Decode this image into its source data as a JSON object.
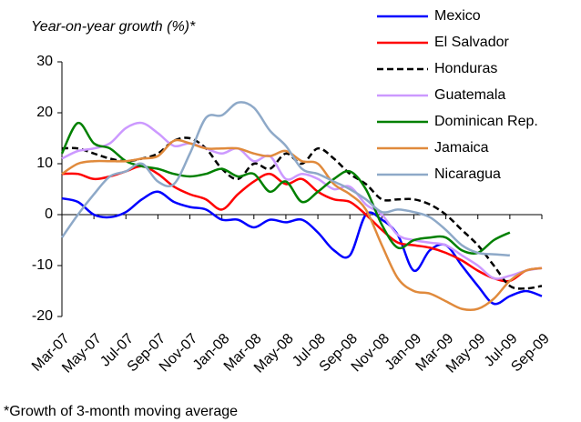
{
  "chart_data": {
    "type": "line",
    "title": "Year-on-year growth (%)*",
    "footnote": "*Growth of 3-month moving average",
    "categories": [
      "Mar-07",
      null,
      "May-07",
      null,
      "Jul-07",
      null,
      "Sep-07",
      null,
      "Nov-07",
      null,
      "Jan-08",
      null,
      "Mar-08",
      null,
      "May-08",
      null,
      "Jul-08",
      null,
      "Sep-08",
      null,
      "Nov-08",
      null,
      "Jan-09",
      null,
      "Mar-09",
      null,
      "May-09",
      null,
      "Jul-09",
      null,
      "Sep-09"
    ],
    "ylim": [
      -20,
      30
    ],
    "yticks": [
      -20,
      -10,
      0,
      10,
      20,
      30
    ],
    "series": [
      {
        "name": "Mexico",
        "color": "#0000ff",
        "dashed": false,
        "values": [
          3.2,
          2.5,
          0,
          -0.5,
          0.5,
          3,
          4.5,
          2.5,
          1.5,
          1,
          -1,
          -1,
          -2.5,
          -1,
          -1.5,
          -1,
          -3.5,
          -7,
          -8,
          0,
          -1,
          -4,
          -11,
          -7,
          -6,
          -10,
          -14,
          -17.5,
          -16,
          -15,
          -16
        ]
      },
      {
        "name": "El Salvador",
        "color": "#ff0000",
        "dashed": false,
        "values": [
          8,
          8,
          7,
          7.5,
          8.5,
          9.5,
          8,
          5.5,
          4,
          3,
          1,
          4,
          6.5,
          8,
          6,
          7,
          4.5,
          3,
          2.5,
          0,
          -3,
          -5.5,
          -6,
          -6.5,
          -7.5,
          -9,
          -11,
          -12.5,
          -13,
          -11,
          -10.5
        ]
      },
      {
        "name": "Honduras",
        "color": "#000000",
        "dashed": true,
        "values": [
          13,
          13,
          12,
          11,
          10.5,
          11,
          12,
          14.5,
          15,
          13,
          9,
          7,
          10,
          9,
          12,
          10,
          13,
          11,
          8,
          6,
          3,
          3,
          3,
          2,
          0,
          -3,
          -6,
          -10,
          -14,
          -14.5,
          -14
        ]
      },
      {
        "name": "Guatemala",
        "color": "#cc99ff",
        "dashed": false,
        "values": [
          11,
          12.5,
          13,
          14,
          17,
          18,
          16,
          13.5,
          14,
          13,
          12,
          13,
          10.5,
          11.5,
          7,
          8,
          7,
          5,
          5.5,
          2,
          0,
          -4,
          -5,
          -5.5,
          -6,
          -8,
          -10,
          -12.5,
          -12,
          -11,
          -10.5
        ]
      },
      {
        "name": "Dominican Rep.",
        "color": "#008000",
        "dashed": false,
        "values": [
          12,
          18,
          14,
          13,
          10.5,
          9.5,
          9,
          8,
          7.5,
          8,
          9,
          7.5,
          8,
          4.5,
          6.5,
          2.5,
          4.5,
          7,
          8.5,
          5,
          -2,
          -6.5,
          -5,
          -4.5,
          -4.5,
          -7,
          -7.5,
          -5,
          -3.5,
          null,
          null
        ]
      },
      {
        "name": "Jamaica",
        "color": "#e08a3c",
        "dashed": false,
        "values": [
          8,
          10,
          10.5,
          10.5,
          10.5,
          11,
          11.5,
          14.5,
          14,
          13,
          13,
          13,
          12,
          11.5,
          12.5,
          10.5,
          10,
          6,
          4,
          1,
          -6,
          -12.5,
          -15,
          -15.5,
          -17,
          -18.5,
          -18.5,
          -16.5,
          -13,
          -11,
          -10.5
        ]
      },
      {
        "name": "Nicaragua",
        "color": "#8ea9c8",
        "dashed": false,
        "values": [
          -4.5,
          0,
          4,
          7.5,
          8.5,
          10,
          6.5,
          6,
          12,
          19,
          19.5,
          22,
          21,
          16.5,
          13.5,
          9,
          8,
          6.5,
          5,
          3,
          0.5,
          1,
          0.5,
          -0.5,
          -3,
          -6,
          -7.5,
          -7.8,
          -8,
          null,
          null
        ]
      }
    ]
  }
}
